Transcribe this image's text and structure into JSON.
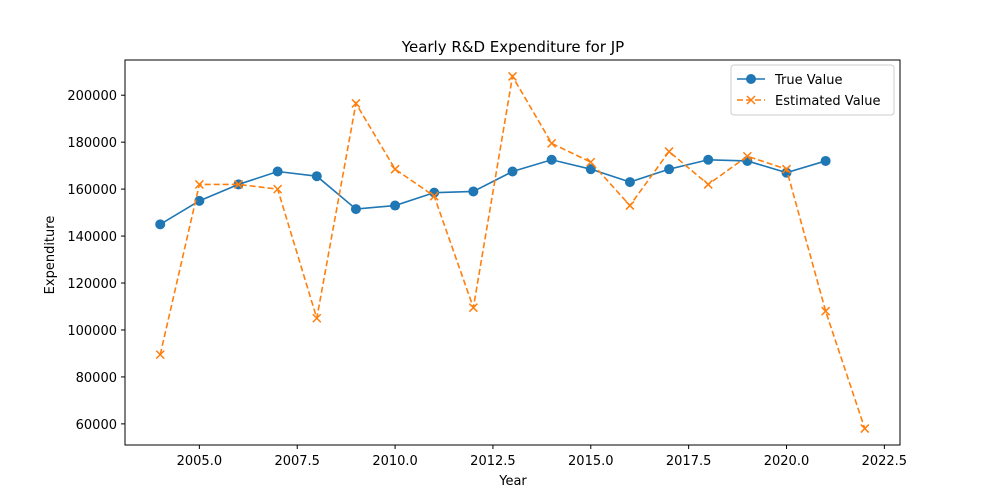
{
  "chart_data": {
    "type": "line",
    "title": "Yearly R&D Expenditure for JP",
    "xlabel": "Year",
    "ylabel": "Expenditure",
    "xlim": [
      2003.1,
      2022.9
    ],
    "ylim": [
      51000,
      215000
    ],
    "xticks": [
      2005.0,
      2007.5,
      2010.0,
      2012.5,
      2015.0,
      2017.5,
      2020.0,
      2022.5
    ],
    "xtick_labels": [
      "2005.0",
      "2007.5",
      "2010.0",
      "2012.5",
      "2015.0",
      "2017.5",
      "2020.0",
      "2022.5"
    ],
    "yticks": [
      60000,
      80000,
      100000,
      120000,
      140000,
      160000,
      180000,
      200000
    ],
    "ytick_labels": [
      "60000",
      "80000",
      "100000",
      "120000",
      "140000",
      "160000",
      "180000",
      "200000"
    ],
    "grid": false,
    "legend_position": "top-right",
    "series": [
      {
        "name": "True Value",
        "color": "#1f77b4",
        "marker": "circle",
        "line_style": "solid",
        "x": [
          2004,
          2005,
          2006,
          2007,
          2008,
          2009,
          2010,
          2011,
          2012,
          2013,
          2014,
          2015,
          2016,
          2017,
          2018,
          2019,
          2020,
          2021
        ],
        "y": [
          145000,
          155000,
          162000,
          167500,
          165500,
          151500,
          153000,
          158500,
          159000,
          167500,
          172500,
          168500,
          163000,
          168500,
          172500,
          172000,
          167000,
          172000
        ]
      },
      {
        "name": "Estimated Value",
        "color": "#ff7f0e",
        "marker": "x",
        "line_style": "dashed",
        "x": [
          2004,
          2005,
          2006,
          2007,
          2008,
          2009,
          2010,
          2011,
          2012,
          2013,
          2014,
          2015,
          2016,
          2017,
          2018,
          2019,
          2020,
          2021,
          2022
        ],
        "y": [
          89500,
          162000,
          162000,
          160000,
          105000,
          196500,
          168500,
          157000,
          109500,
          208000,
          179500,
          171500,
          153000,
          176000,
          162000,
          174000,
          168500,
          108000,
          58000
        ]
      }
    ]
  }
}
